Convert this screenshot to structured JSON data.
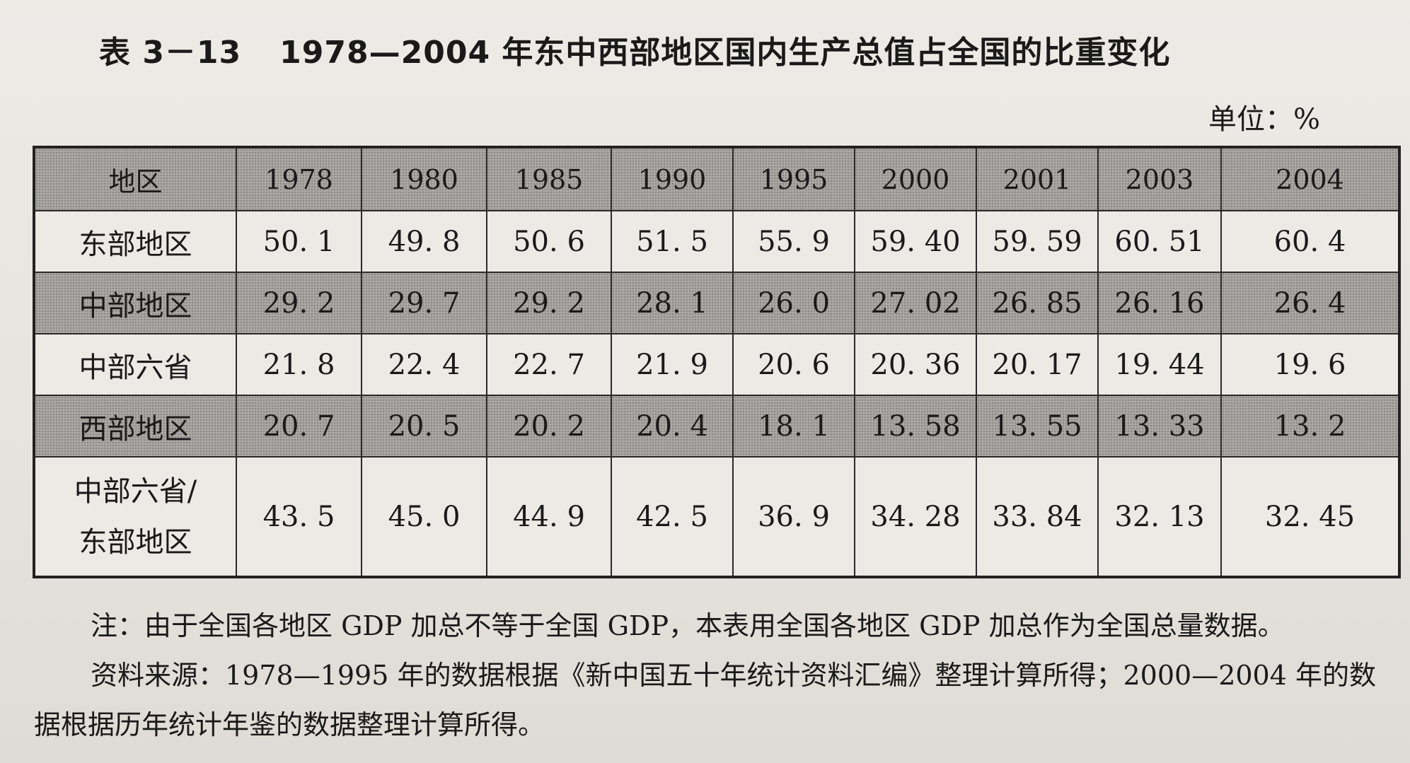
{
  "title": {
    "number": "表 3－13",
    "text": "1978—2004 年东中西部地区国内生产总值占全国的比重变化"
  },
  "unit": "单位：%",
  "table": {
    "headers": [
      "地区",
      "1978",
      "1980",
      "1985",
      "1990",
      "1995",
      "2000",
      "2001",
      "2003",
      "2004"
    ],
    "rows": [
      {
        "region": "东部地区",
        "values": [
          "50. 1",
          "49. 8",
          "50. 6",
          "51. 5",
          "55. 9",
          "59. 40",
          "59. 59",
          "60. 51",
          "60. 4"
        ]
      },
      {
        "region": "中部地区",
        "values": [
          "29. 2",
          "29. 7",
          "29. 2",
          "28. 1",
          "26. 0",
          "27. 02",
          "26. 85",
          "26. 16",
          "26. 4"
        ]
      },
      {
        "region": "中部六省",
        "values": [
          "21. 8",
          "22. 4",
          "22. 7",
          "21. 9",
          "20. 6",
          "20. 36",
          "20. 17",
          "19. 44",
          "19. 6"
        ]
      },
      {
        "region": "西部地区",
        "values": [
          "20. 7",
          "20. 5",
          "20. 2",
          "20. 4",
          "18. 1",
          "13. 58",
          "13. 55",
          "13. 33",
          "13. 2"
        ]
      }
    ],
    "ratio_row": {
      "region_line1": "中部六省/",
      "region_line2": "东部地区",
      "values": [
        "43. 5",
        "45. 0",
        "44. 9",
        "42. 5",
        "36. 9",
        "34. 28",
        "33. 84",
        "32. 13",
        "32. 45"
      ]
    }
  },
  "notes": {
    "note": "注：由于全国各地区 GDP 加总不等于全国 GDP，本表用全国各地区 GDP 加总作为全国总量数据。",
    "source": "资料来源：1978—1995 年的数据根据《新中国五十年统计资料汇编》整理计算所得；2000—2004 年的数据根据历年统计年鉴的数据整理计算所得。"
  }
}
